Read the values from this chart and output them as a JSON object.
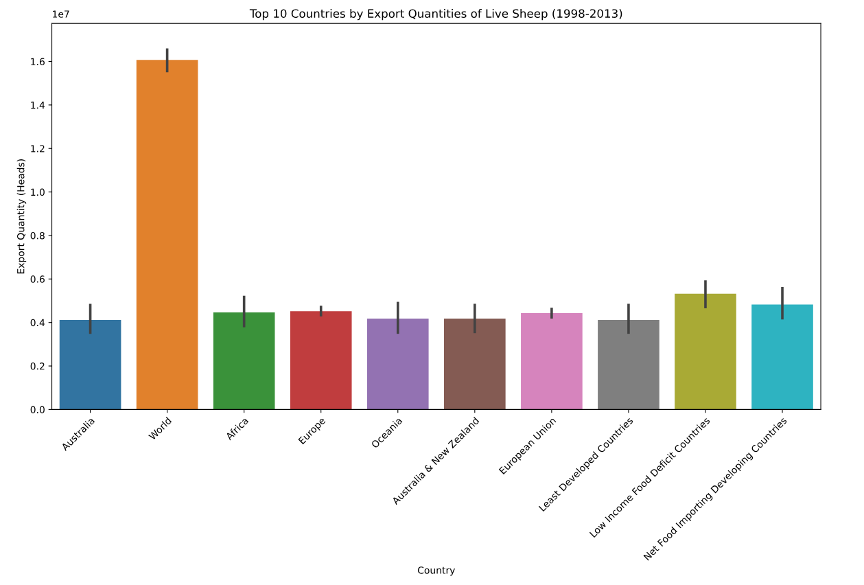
{
  "chart_data": {
    "type": "bar",
    "title": "Top 10 Countries by Export Quantities of Live Sheep (1998-2013)",
    "xlabel": "Country",
    "ylabel": "Export Quantity (Heads)",
    "categories": [
      "Australia",
      "World",
      "Africa",
      "Europe",
      "Oceania",
      "Australia & New Zealand",
      "European Union",
      "Least Developed Countries",
      "Low Income Food Deficit Countries",
      "Net Food Importing Developing Countries"
    ],
    "values": [
      0.412,
      1.607,
      0.446,
      0.452,
      0.418,
      0.418,
      0.443,
      0.412,
      0.532,
      0.483
    ],
    "errors": [
      [
        0.348,
        0.486
      ],
      [
        1.55,
        1.66
      ],
      [
        0.378,
        0.523
      ],
      [
        0.428,
        0.477
      ],
      [
        0.348,
        0.495
      ],
      [
        0.351,
        0.486
      ],
      [
        0.418,
        0.468
      ],
      [
        0.348,
        0.486
      ],
      [
        0.465,
        0.594
      ],
      [
        0.414,
        0.563
      ]
    ],
    "colors": [
      "#3274a1",
      "#e1812c",
      "#3a923a",
      "#c03d3e",
      "#9372b2",
      "#845b53",
      "#d684bd",
      "#7f7f7f",
      "#a9aa35",
      "#2eb3c1"
    ],
    "ylim": [
      0,
      1.775
    ],
    "yticks": [
      {
        "value": 0,
        "label": "0.0"
      },
      0.2,
      0.4,
      0.6,
      0.8,
      {
        "value": 1,
        "label": "1.0"
      },
      1.2,
      1.4,
      1.6
    ],
    "annotations": [
      "1e7"
    ],
    "grid": false,
    "legend": false
  }
}
